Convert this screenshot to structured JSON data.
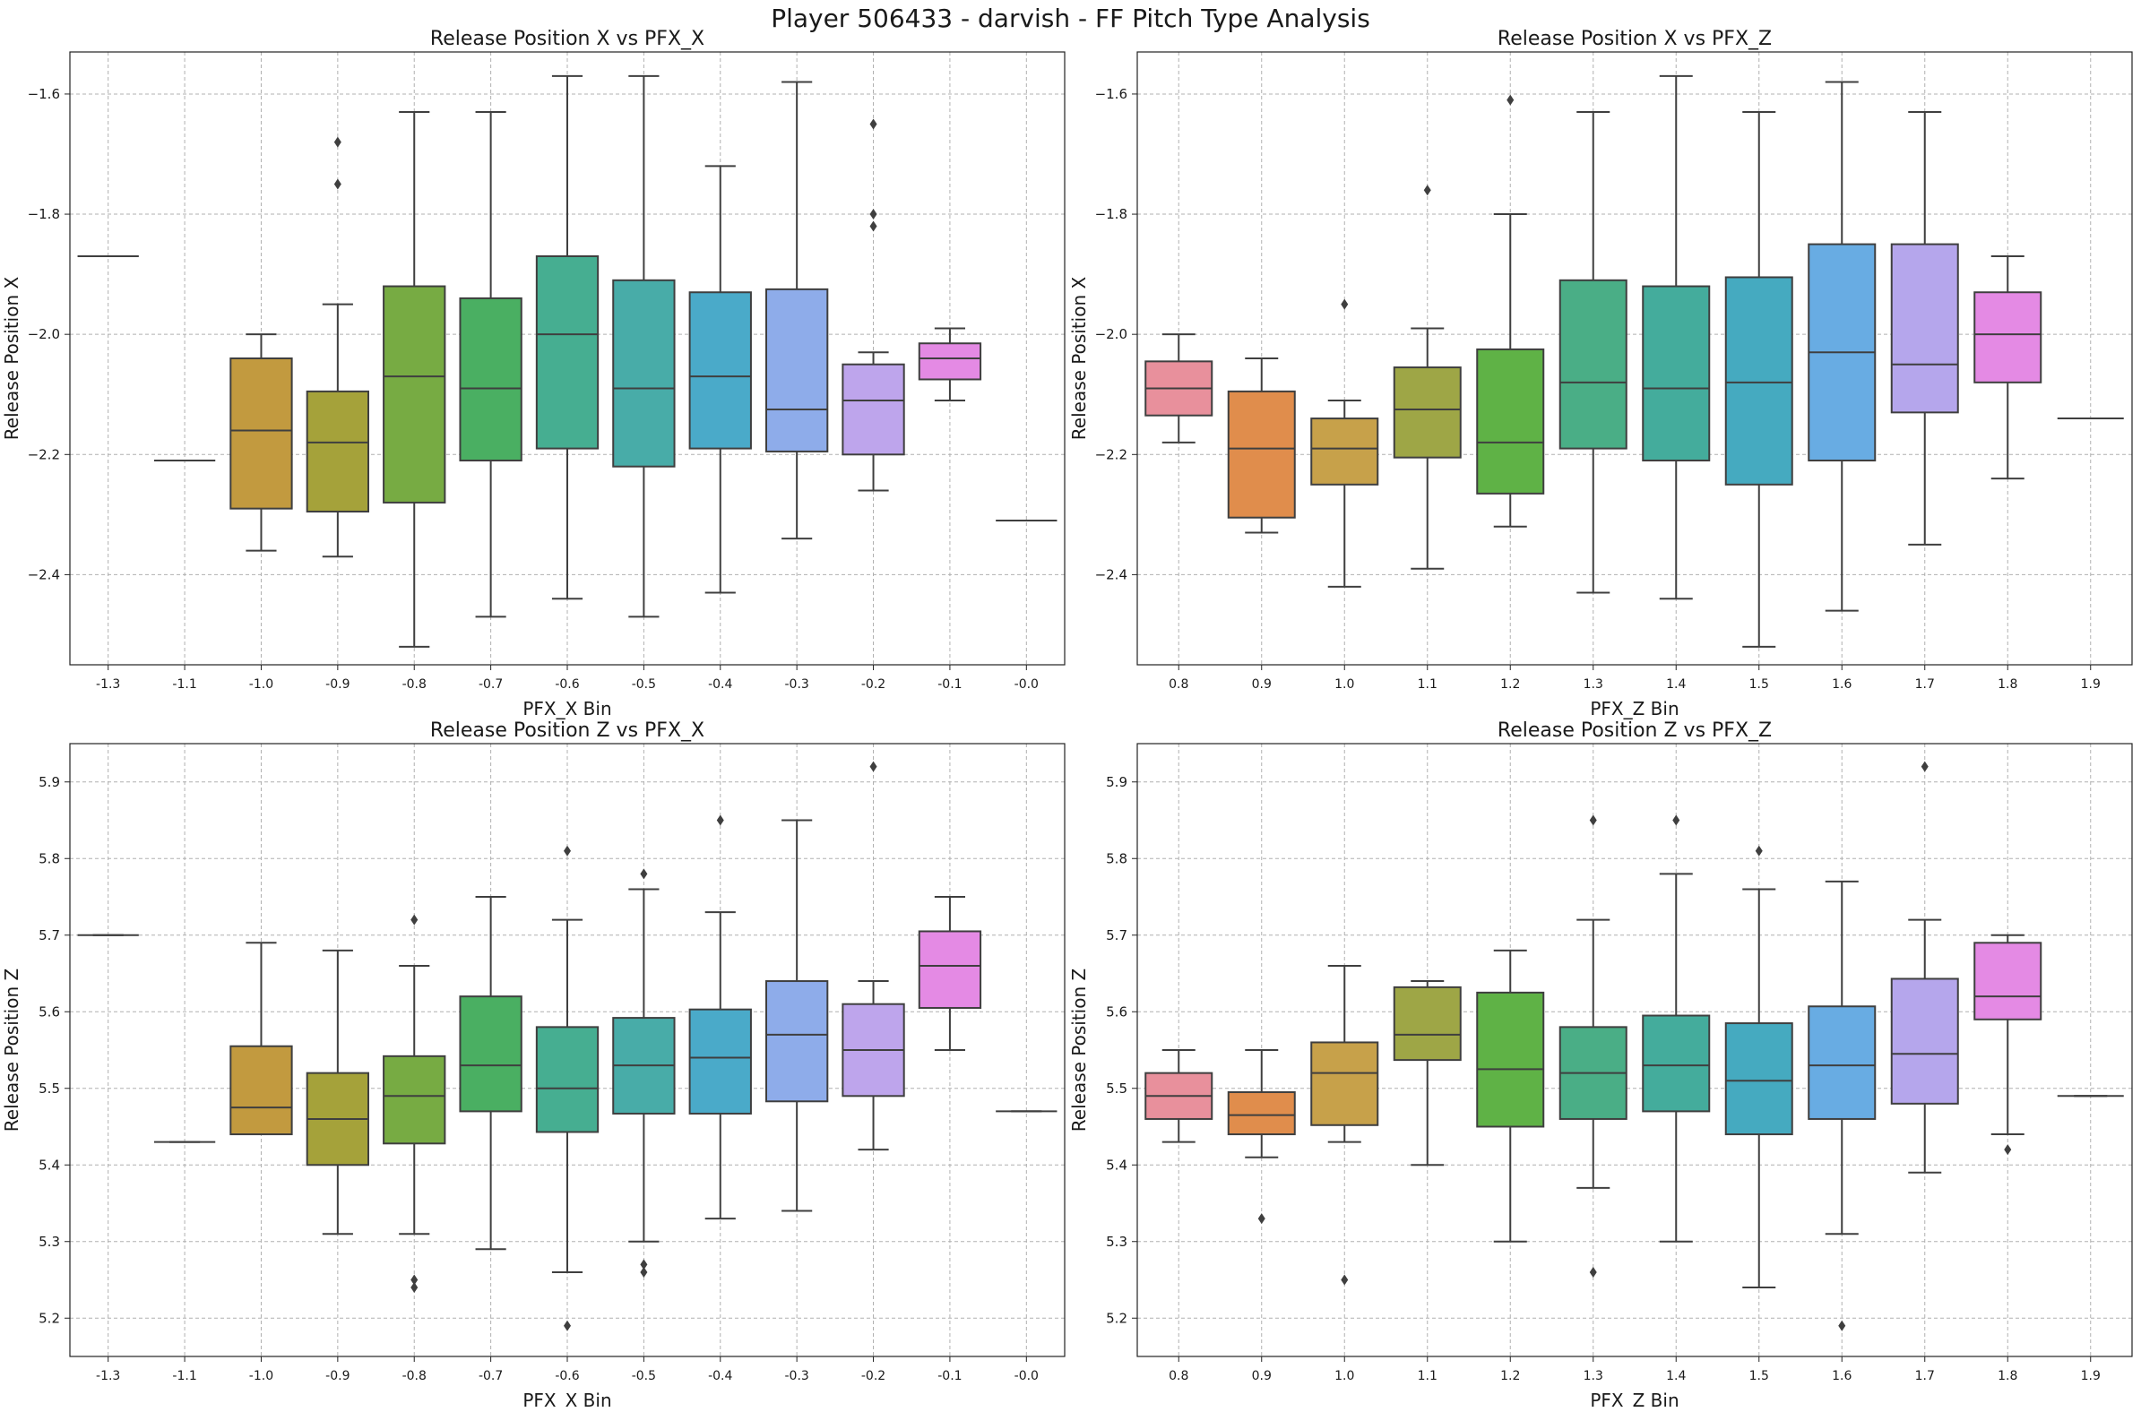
{
  "figure": {
    "title": "Player 506433 - darvish - FF Pitch Type Analysis"
  },
  "chart_data": [
    {
      "type": "box",
      "title": "Release Position X vs PFX_X",
      "xlabel": "PFX_X Bin",
      "ylabel": "Release Position X",
      "ylim": [
        -2.55,
        -1.53
      ],
      "yticks": [
        -1.6,
        -1.8,
        -2.0,
        -2.2,
        -2.4
      ],
      "ytick_labels": [
        "−1.6",
        "−1.8",
        "−2.0",
        "−2.2",
        "−2.4"
      ],
      "grid": true,
      "categories": [
        "-1.3",
        "-1.1",
        "-1.0",
        "-0.9",
        "-0.8",
        "-0.7",
        "-0.6",
        "-0.5",
        "-0.4",
        "-0.3",
        "-0.2",
        "-0.1",
        "-0.0"
      ],
      "boxes": [
        {
          "category": "-1.3",
          "whislo": -1.87,
          "q1": -1.87,
          "med": -1.87,
          "q3": -1.87,
          "whishi": -1.87,
          "fliers": [],
          "color": "#e8909c"
        },
        {
          "category": "-1.1",
          "whislo": -2.21,
          "q1": -2.21,
          "med": -2.21,
          "q3": -2.21,
          "whishi": -2.21,
          "fliers": [],
          "color": "#dc8a4b"
        },
        {
          "category": "-1.0",
          "whislo": -2.36,
          "q1": -2.29,
          "med": -2.16,
          "q3": -2.04,
          "whishi": -2.0,
          "fliers": [],
          "color": "#c29a3f"
        },
        {
          "category": "-0.9",
          "whislo": -2.37,
          "q1": -2.295,
          "med": -2.18,
          "q3": -2.095,
          "whishi": -1.95,
          "fliers": [
            -1.68,
            -1.75
          ],
          "color": "#a5a23a"
        },
        {
          "category": "-0.8",
          "whislo": -2.52,
          "q1": -2.28,
          "med": -2.07,
          "q3": -1.92,
          "whishi": -1.63,
          "fliers": [],
          "color": "#77ab43"
        },
        {
          "category": "-0.7",
          "whislo": -2.47,
          "q1": -2.21,
          "med": -2.09,
          "q3": -1.94,
          "whishi": -1.63,
          "fliers": [],
          "color": "#4aaf62"
        },
        {
          "category": "-0.6",
          "whislo": -2.44,
          "q1": -2.19,
          "med": -2.0,
          "q3": -1.87,
          "whishi": -1.57,
          "fliers": [],
          "color": "#46ae91"
        },
        {
          "category": "-0.5",
          "whislo": -2.47,
          "q1": -2.22,
          "med": -2.09,
          "q3": -1.91,
          "whishi": -1.57,
          "fliers": [],
          "color": "#48aca8"
        },
        {
          "category": "-0.4",
          "whislo": -2.43,
          "q1": -2.19,
          "med": -2.07,
          "q3": -1.93,
          "whishi": -1.72,
          "fliers": [],
          "color": "#4aaac9"
        },
        {
          "category": "-0.3",
          "whislo": -2.34,
          "q1": -2.195,
          "med": -2.125,
          "q3": -1.925,
          "whishi": -1.58,
          "fliers": [],
          "color": "#8eacea"
        },
        {
          "category": "-0.2",
          "whislo": -2.26,
          "q1": -2.2,
          "med": -2.11,
          "q3": -2.05,
          "whishi": -2.03,
          "fliers": [
            -1.65,
            -1.8,
            -1.82
          ],
          "color": "#bea5ec"
        },
        {
          "category": "-0.1",
          "whislo": -2.11,
          "q1": -2.075,
          "med": -2.04,
          "q3": -2.015,
          "whishi": -1.99,
          "fliers": [],
          "color": "#e48ae4"
        },
        {
          "category": "-0.0",
          "whislo": -2.31,
          "q1": -2.31,
          "med": -2.31,
          "q3": -2.31,
          "whishi": -2.31,
          "fliers": [],
          "color": "#eb8fbd"
        }
      ]
    },
    {
      "type": "box",
      "title": "Release Position X vs PFX_Z",
      "xlabel": "PFX_Z Bin",
      "ylabel": "Release Position X",
      "ylim": [
        -2.55,
        -1.53
      ],
      "yticks": [
        -1.6,
        -1.8,
        -2.0,
        -2.2,
        -2.4
      ],
      "ytick_labels": [
        "−1.6",
        "−1.8",
        "−2.0",
        "−2.2",
        "−2.4"
      ],
      "grid": true,
      "categories": [
        "0.8",
        "0.9",
        "1.0",
        "1.1",
        "1.2",
        "1.3",
        "1.4",
        "1.5",
        "1.6",
        "1.7",
        "1.8",
        "1.9"
      ],
      "boxes": [
        {
          "category": "0.8",
          "whislo": -2.18,
          "q1": -2.135,
          "med": -2.09,
          "q3": -2.045,
          "whishi": -2.0,
          "fliers": [],
          "color": "#e8909c"
        },
        {
          "category": "0.9",
          "whislo": -2.33,
          "q1": -2.305,
          "med": -2.19,
          "q3": -2.095,
          "whishi": -2.04,
          "fliers": [],
          "color": "#e08d4c"
        },
        {
          "category": "1.0",
          "whislo": -2.42,
          "q1": -2.25,
          "med": -2.19,
          "q3": -2.14,
          "whishi": -2.11,
          "fliers": [
            -1.95
          ],
          "color": "#c7a14a"
        },
        {
          "category": "1.1",
          "whislo": -2.39,
          "q1": -2.205,
          "med": -2.125,
          "q3": -2.055,
          "whishi": -1.99,
          "fliers": [
            -1.76
          ],
          "color": "#9ea646"
        },
        {
          "category": "1.2",
          "whislo": -2.32,
          "q1": -2.265,
          "med": -2.18,
          "q3": -2.025,
          "whishi": -1.8,
          "fliers": [
            -1.61
          ],
          "color": "#5fb246"
        },
        {
          "category": "1.3",
          "whislo": -2.43,
          "q1": -2.19,
          "med": -2.08,
          "q3": -1.91,
          "whishi": -1.63,
          "fliers": [],
          "color": "#4aae86"
        },
        {
          "category": "1.4",
          "whislo": -2.44,
          "q1": -2.21,
          "med": -2.09,
          "q3": -1.92,
          "whishi": -1.57,
          "fliers": [],
          "color": "#44ac9c"
        },
        {
          "category": "1.5",
          "whislo": -2.52,
          "q1": -2.25,
          "med": -2.08,
          "q3": -1.905,
          "whishi": -1.63,
          "fliers": [],
          "color": "#45aac0"
        },
        {
          "category": "1.6",
          "whislo": -2.46,
          "q1": -2.21,
          "med": -2.03,
          "q3": -1.85,
          "whishi": -1.58,
          "fliers": [],
          "color": "#68ace3"
        },
        {
          "category": "1.7",
          "whislo": -2.35,
          "q1": -2.13,
          "med": -2.05,
          "q3": -1.85,
          "whishi": -1.63,
          "fliers": [],
          "color": "#b5a6ec"
        },
        {
          "category": "1.8",
          "whislo": -2.24,
          "q1": -2.08,
          "med": -2.0,
          "q3": -1.93,
          "whishi": -1.87,
          "fliers": [],
          "color": "#e48ae4"
        },
        {
          "category": "1.9",
          "whislo": -2.14,
          "q1": -2.14,
          "med": -2.14,
          "q3": -2.14,
          "whishi": -2.14,
          "fliers": [],
          "color": "#eb8fbd"
        }
      ]
    },
    {
      "type": "box",
      "title": "Release Position Z vs PFX_X",
      "xlabel": "PFX_X Bin",
      "ylabel": "Release Position Z",
      "ylim": [
        5.15,
        5.95
      ],
      "yticks": [
        5.9,
        5.8,
        5.7,
        5.6,
        5.5,
        5.4,
        5.3,
        5.2
      ],
      "ytick_labels": [
        "5.9",
        "5.8",
        "5.7",
        "5.6",
        "5.5",
        "5.4",
        "5.3",
        "5.2"
      ],
      "grid": true,
      "categories": [
        "-1.3",
        "-1.1",
        "-1.0",
        "-0.9",
        "-0.8",
        "-0.7",
        "-0.6",
        "-0.5",
        "-0.4",
        "-0.3",
        "-0.2",
        "-0.1",
        "-0.0"
      ],
      "boxes": [
        {
          "category": "-1.3",
          "whislo": 5.7,
          "q1": 5.7,
          "med": 5.7,
          "q3": 5.7,
          "whishi": 5.7,
          "fliers": [],
          "color": "#e8909c"
        },
        {
          "category": "-1.1",
          "whislo": 5.43,
          "q1": 5.43,
          "med": 5.43,
          "q3": 5.43,
          "whishi": 5.43,
          "fliers": [],
          "color": "#dc8a4b"
        },
        {
          "category": "-1.0",
          "whislo": 5.44,
          "q1": 5.44,
          "med": 5.475,
          "q3": 5.555,
          "whishi": 5.69,
          "fliers": [],
          "color": "#c29a3f"
        },
        {
          "category": "-0.9",
          "whislo": 5.31,
          "q1": 5.4,
          "med": 5.46,
          "q3": 5.52,
          "whishi": 5.68,
          "fliers": [],
          "color": "#a5a23a"
        },
        {
          "category": "-0.8",
          "whislo": 5.31,
          "q1": 5.428,
          "med": 5.49,
          "q3": 5.542,
          "whishi": 5.66,
          "fliers": [
            5.72,
            5.25,
            5.24
          ],
          "color": "#77ab43"
        },
        {
          "category": "-0.7",
          "whislo": 5.29,
          "q1": 5.47,
          "med": 5.53,
          "q3": 5.62,
          "whishi": 5.75,
          "fliers": [],
          "color": "#4aaf62"
        },
        {
          "category": "-0.6",
          "whislo": 5.26,
          "q1": 5.443,
          "med": 5.5,
          "q3": 5.58,
          "whishi": 5.72,
          "fliers": [
            5.81,
            5.19
          ],
          "color": "#46ae91"
        },
        {
          "category": "-0.5",
          "whislo": 5.3,
          "q1": 5.467,
          "med": 5.53,
          "q3": 5.592,
          "whishi": 5.76,
          "fliers": [
            5.78,
            5.27,
            5.26
          ],
          "color": "#48aca8"
        },
        {
          "category": "-0.4",
          "whislo": 5.33,
          "q1": 5.467,
          "med": 5.54,
          "q3": 5.603,
          "whishi": 5.73,
          "fliers": [
            5.85
          ],
          "color": "#4aaac9"
        },
        {
          "category": "-0.3",
          "whislo": 5.34,
          "q1": 5.483,
          "med": 5.57,
          "q3": 5.64,
          "whishi": 5.85,
          "fliers": [],
          "color": "#8eacea"
        },
        {
          "category": "-0.2",
          "whislo": 5.42,
          "q1": 5.49,
          "med": 5.55,
          "q3": 5.61,
          "whishi": 5.64,
          "fliers": [
            5.92
          ],
          "color": "#bea5ec"
        },
        {
          "category": "-0.1",
          "whislo": 5.55,
          "q1": 5.605,
          "med": 5.66,
          "q3": 5.705,
          "whishi": 5.75,
          "fliers": [],
          "color": "#e48ae4"
        },
        {
          "category": "-0.0",
          "whislo": 5.47,
          "q1": 5.47,
          "med": 5.47,
          "q3": 5.47,
          "whishi": 5.47,
          "fliers": [],
          "color": "#eb8fbd"
        }
      ]
    },
    {
      "type": "box",
      "title": "Release Position Z vs PFX_Z",
      "xlabel": "PFX_Z Bin",
      "ylabel": "Release Position Z",
      "ylim": [
        5.15,
        5.95
      ],
      "yticks": [
        5.9,
        5.8,
        5.7,
        5.6,
        5.5,
        5.4,
        5.3,
        5.2
      ],
      "ytick_labels": [
        "5.9",
        "5.8",
        "5.7",
        "5.6",
        "5.5",
        "5.4",
        "5.3",
        "5.2"
      ],
      "grid": true,
      "categories": [
        "0.8",
        "0.9",
        "1.0",
        "1.1",
        "1.2",
        "1.3",
        "1.4",
        "1.5",
        "1.6",
        "1.7",
        "1.8",
        "1.9"
      ],
      "boxes": [
        {
          "category": "0.8",
          "whislo": 5.43,
          "q1": 5.46,
          "med": 5.49,
          "q3": 5.52,
          "whishi": 5.55,
          "fliers": [],
          "color": "#e8909c"
        },
        {
          "category": "0.9",
          "whislo": 5.41,
          "q1": 5.44,
          "med": 5.465,
          "q3": 5.495,
          "whishi": 5.55,
          "fliers": [
            5.33
          ],
          "color": "#e08d4c"
        },
        {
          "category": "1.0",
          "whislo": 5.43,
          "q1": 5.452,
          "med": 5.52,
          "q3": 5.56,
          "whishi": 5.66,
          "fliers": [
            5.25
          ],
          "color": "#c7a14a"
        },
        {
          "category": "1.1",
          "whislo": 5.4,
          "q1": 5.537,
          "med": 5.57,
          "q3": 5.632,
          "whishi": 5.64,
          "fliers": [],
          "color": "#9ea646"
        },
        {
          "category": "1.2",
          "whislo": 5.3,
          "q1": 5.45,
          "med": 5.525,
          "q3": 5.625,
          "whishi": 5.68,
          "fliers": [],
          "color": "#5fb246"
        },
        {
          "category": "1.3",
          "whislo": 5.37,
          "q1": 5.46,
          "med": 5.52,
          "q3": 5.58,
          "whishi": 5.72,
          "fliers": [
            5.85,
            5.26
          ],
          "color": "#4aae86"
        },
        {
          "category": "1.4",
          "whislo": 5.3,
          "q1": 5.47,
          "med": 5.53,
          "q3": 5.595,
          "whishi": 5.78,
          "fliers": [
            5.85
          ],
          "color": "#44ac9c"
        },
        {
          "category": "1.5",
          "whislo": 5.24,
          "q1": 5.44,
          "med": 5.51,
          "q3": 5.585,
          "whishi": 5.76,
          "fliers": [
            5.81
          ],
          "color": "#45aac0"
        },
        {
          "category": "1.6",
          "whislo": 5.31,
          "q1": 5.46,
          "med": 5.53,
          "q3": 5.607,
          "whishi": 5.77,
          "fliers": [
            5.19
          ],
          "color": "#68ace3"
        },
        {
          "category": "1.7",
          "whislo": 5.39,
          "q1": 5.48,
          "med": 5.545,
          "q3": 5.643,
          "whishi": 5.72,
          "fliers": [
            5.92
          ],
          "color": "#b5a6ec"
        },
        {
          "category": "1.8",
          "whislo": 5.44,
          "q1": 5.59,
          "med": 5.62,
          "q3": 5.69,
          "whishi": 5.7,
          "fliers": [
            5.42
          ],
          "color": "#e48ae4"
        },
        {
          "category": "1.9",
          "whislo": 5.49,
          "q1": 5.49,
          "med": 5.49,
          "q3": 5.49,
          "whishi": 5.49,
          "fliers": [],
          "color": "#eb8fbd"
        }
      ]
    }
  ]
}
